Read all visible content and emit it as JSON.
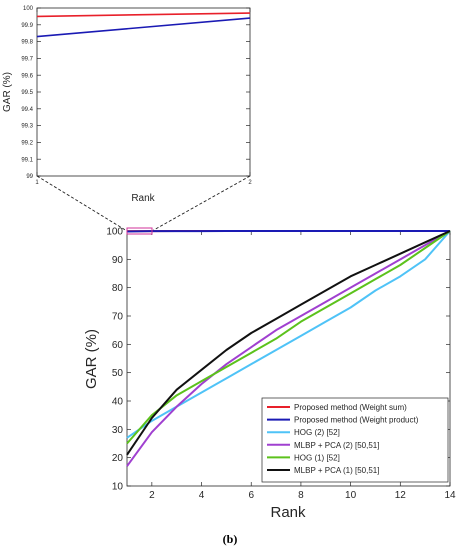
{
  "caption": "(b)",
  "chart_data": [
    {
      "id": "main",
      "type": "line",
      "xlabel": "Rank",
      "ylabel": "GAR (%)",
      "xlim": [
        1,
        14
      ],
      "ylim": [
        10,
        100
      ],
      "xticks": [
        2,
        4,
        6,
        8,
        10,
        12,
        14
      ],
      "yticks": [
        10,
        20,
        30,
        40,
        50,
        60,
        70,
        80,
        90,
        100
      ],
      "grid": false,
      "legend_position": "bottom-right",
      "x": [
        1,
        2,
        3,
        4,
        5,
        6,
        7,
        8,
        9,
        10,
        11,
        12,
        13,
        14
      ],
      "series": [
        {
          "name": "Proposed method (Weight sum)",
          "color": "#e8202a",
          "values": [
            99.95,
            99.97,
            99.98,
            99.98,
            99.99,
            99.99,
            99.99,
            100,
            100,
            100,
            100,
            100,
            100,
            100
          ]
        },
        {
          "name": "Proposed method (Weight product)",
          "color": "#1a1ab4",
          "values": [
            99.83,
            99.94,
            99.96,
            99.97,
            99.98,
            99.99,
            99.99,
            100,
            100,
            100,
            100,
            100,
            100,
            100
          ]
        },
        {
          "name": "HOG (2) [52]",
          "color": "#4fc3f7",
          "values": [
            27,
            33,
            38,
            43,
            48,
            53,
            58,
            63,
            68,
            73,
            79,
            84,
            90,
            100
          ]
        },
        {
          "name": "MLBP + PCA (2) [50,51]",
          "color": "#a040d0",
          "values": [
            17,
            29,
            38,
            46,
            53,
            59,
            65,
            70,
            75,
            80,
            85,
            90,
            95,
            100
          ]
        },
        {
          "name": "HOG (1) [52]",
          "color": "#5cc21c",
          "values": [
            25,
            35,
            42,
            47,
            52,
            57,
            62,
            68,
            73,
            78,
            83,
            88,
            94,
            100
          ]
        },
        {
          "name": "MLBP + PCA (1) [50,51]",
          "color": "#111111",
          "values": [
            21,
            34,
            44,
            51,
            58,
            64,
            69,
            74,
            79,
            84,
            88,
            92,
            96,
            100
          ]
        }
      ]
    },
    {
      "id": "inset",
      "type": "line",
      "xlabel": "Rank",
      "ylabel": "GAR (%)",
      "xlim": [
        1,
        2
      ],
      "ylim": [
        99,
        100
      ],
      "xticks": [
        1,
        2
      ],
      "yticks": [
        99,
        99.1,
        99.2,
        99.3,
        99.4,
        99.5,
        99.6,
        99.7,
        99.8,
        99.9,
        100
      ],
      "grid": false,
      "x": [
        1,
        2
      ],
      "series": [
        {
          "color": "#e8202a",
          "values": [
            99.95,
            99.97
          ]
        },
        {
          "color": "#1a1ab4",
          "values": [
            99.83,
            99.94
          ]
        }
      ]
    }
  ]
}
